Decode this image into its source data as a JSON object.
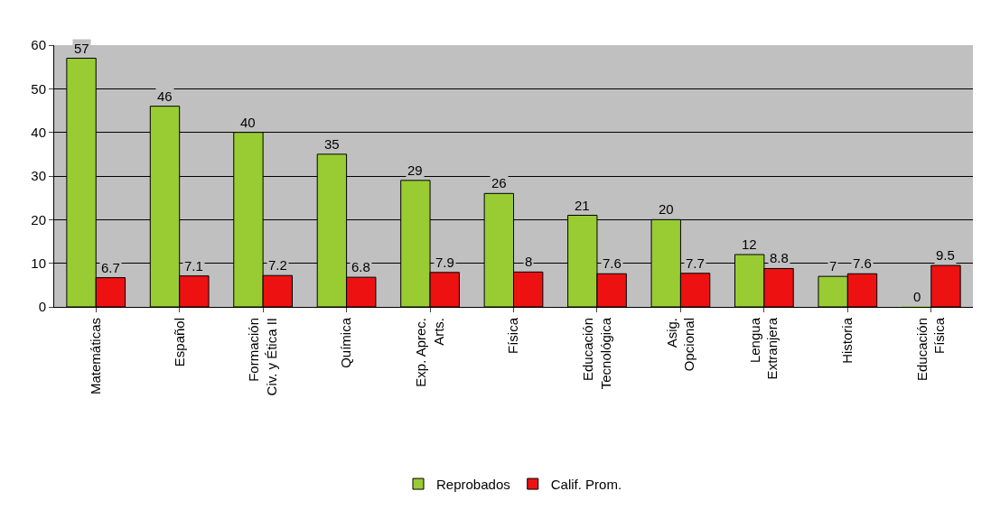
{
  "chart_data": {
    "type": "bar",
    "categories": [
      "Matemáticas",
      "Español",
      "Formación\nCiv. y Ética II",
      "Química",
      "Exp. Aprec.\nArts.",
      "Física",
      "Educación\nTecnológica",
      "Asig.\nOpcional",
      "Lengua\nExtranjera",
      "Historia",
      "Educación\nFísica"
    ],
    "series": [
      {
        "name": "Reprobados",
        "color": "#99cc33",
        "values": [
          57,
          46,
          40,
          35,
          29,
          26,
          21,
          20,
          12,
          7,
          0
        ]
      },
      {
        "name": "Calif. Prom.",
        "color": "#ee1111",
        "values": [
          6.7,
          7.1,
          7.2,
          6.8,
          7.9,
          8,
          7.6,
          7.7,
          8.8,
          7.6,
          9.5
        ]
      }
    ],
    "ylim": [
      0,
      60
    ],
    "yticks": [
      0,
      10,
      20,
      30,
      40,
      50,
      60
    ],
    "grid": "y",
    "legend": "bottom",
    "data_labels": true
  }
}
